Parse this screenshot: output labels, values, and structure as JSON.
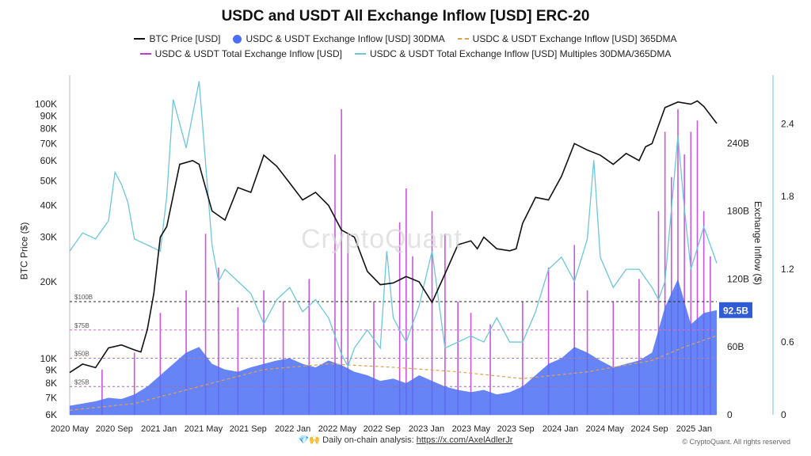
{
  "chart_data": {
    "type": "line",
    "title": "USDC and USDT All Exchange Inflow [USD] ERC-20",
    "legend": [
      {
        "label": "BTC Price [USD]",
        "style": "line",
        "color": "#111111"
      },
      {
        "label": "USDC & USDT Exchange Inflow [USD] 30DMA",
        "style": "area",
        "color": "#4c6ef5"
      },
      {
        "label": "USDC & USDT Exchange Inflow [USD] 365DMA",
        "style": "dashed",
        "color": "#e0a050"
      },
      {
        "label": "USDC & USDT Total Exchange Inflow [USD]",
        "style": "bar",
        "color": "#c03ad8"
      },
      {
        "label": "USDC & USDT Total Exchange Inflow [USD] Multiples 30DMA/365DMA",
        "style": "line",
        "color": "#6cc6dc"
      }
    ],
    "x_ticks": [
      "2020 May",
      "2020 Sep",
      "2021 Jan",
      "2021 May",
      "2021 Sep",
      "2022 Jan",
      "2022 May",
      "2022 Sep",
      "2023 Jan",
      "2023 May",
      "2023 Sep",
      "2024 Jan",
      "2024 May",
      "2024 Sep",
      "2025 Jan"
    ],
    "left_axis": {
      "label": "BTC Price ($)",
      "scale": "log",
      "range": [
        6000,
        130000
      ],
      "ticks": [
        "6K",
        "7K",
        "8K",
        "9K",
        "10K",
        "20K",
        "30K",
        "40K",
        "50K",
        "60K",
        "70K",
        "80K",
        "90K",
        "100K"
      ],
      "tick_values": [
        6000,
        7000,
        8000,
        9000,
        10000,
        20000,
        30000,
        40000,
        50000,
        60000,
        70000,
        80000,
        90000,
        100000
      ]
    },
    "right_axis": {
      "label": "Exchange Inflow ($)",
      "range": [
        0,
        300
      ],
      "unit": "B",
      "ticks": [
        "0",
        "60B",
        "120B",
        "180B",
        "240B"
      ],
      "tick_values": [
        0,
        60,
        120,
        180,
        240
      ]
    },
    "multiple_axis": {
      "range": [
        0,
        2.8
      ],
      "ticks": [
        "0",
        "0.6",
        "1.2",
        "1.8",
        "2.4"
      ],
      "tick_values": [
        0,
        0.6,
        1.2,
        1.8,
        2.4
      ]
    },
    "reference_lines": [
      {
        "label": "$100B",
        "value": 100,
        "style": "dashed",
        "color": "#222222"
      },
      {
        "label": "$75B",
        "value": 75,
        "style": "dashed",
        "color": "#d070c0"
      },
      {
        "label": "$50B",
        "value": 50,
        "style": "dashed",
        "color": "#a080c0"
      },
      {
        "label": "$25B",
        "value": 25,
        "style": "dashed",
        "color": "#9070b0"
      }
    ],
    "current_value_badge": {
      "label": "92.5B",
      "value": 92.5
    },
    "series": [
      {
        "name": "BTC Price [USD]",
        "axis": "left",
        "x": [
          0,
          2,
          4,
          6,
          8,
          10,
          11,
          12,
          13,
          14,
          15,
          17,
          19,
          20,
          22,
          24,
          26,
          28,
          30,
          32,
          34,
          36,
          38,
          40,
          42,
          44,
          46,
          48,
          50,
          52,
          54,
          56,
          58,
          60,
          62,
          63,
          64,
          66,
          68,
          69,
          70,
          72,
          74,
          76,
          78,
          80,
          82,
          84,
          86,
          88,
          89,
          90,
          92,
          94,
          96,
          97,
          98,
          100
        ],
        "values": [
          8800,
          9500,
          9200,
          11000,
          11300,
          10800,
          10600,
          13000,
          18000,
          30000,
          33000,
          58000,
          60000,
          58000,
          38000,
          35000,
          47000,
          45000,
          63000,
          57000,
          49000,
          42000,
          45000,
          40000,
          32000,
          30000,
          22000,
          19500,
          19800,
          21000,
          20000,
          16600,
          21500,
          28000,
          29000,
          27000,
          30000,
          27000,
          26500,
          27000,
          34000,
          43000,
          42000,
          52000,
          70000,
          66000,
          63000,
          58000,
          64000,
          60000,
          68000,
          70000,
          97000,
          102000,
          100000,
          103000,
          98000,
          84000
        ]
      },
      {
        "name": "USDC & USDT Exchange Inflow [USD] Multiples 30DMA/365DMA",
        "axis": "multiple",
        "x": [
          0,
          2,
          4,
          6,
          7,
          8,
          9,
          10,
          12,
          14,
          15,
          16,
          18,
          20,
          22,
          23,
          24,
          26,
          28,
          30,
          32,
          34,
          36,
          38,
          40,
          42,
          43,
          44,
          46,
          48,
          49,
          50,
          52,
          54,
          56,
          58,
          60,
          62,
          64,
          66,
          68,
          70,
          72,
          74,
          76,
          78,
          80,
          81,
          82,
          84,
          86,
          88,
          90,
          91,
          92,
          94,
          95,
          96,
          98,
          100
        ],
        "values": [
          1.35,
          1.5,
          1.45,
          1.6,
          2.0,
          1.9,
          1.75,
          1.45,
          1.4,
          1.35,
          1.8,
          2.6,
          2.2,
          2.75,
          1.4,
          1.1,
          1.2,
          1.1,
          1.0,
          0.75,
          0.95,
          1.05,
          0.85,
          0.95,
          0.8,
          0.5,
          0.4,
          0.55,
          0.7,
          0.55,
          1.35,
          0.8,
          0.6,
          0.9,
          1.35,
          0.55,
          0.6,
          0.65,
          0.6,
          0.8,
          0.6,
          0.6,
          0.85,
          1.2,
          1.3,
          1.1,
          1.45,
          2.1,
          1.3,
          1.05,
          1.2,
          1.2,
          1.05,
          0.95,
          1.1,
          2.3,
          1.7,
          1.2,
          1.55,
          1.25
        ]
      },
      {
        "name": "USDC & USDT Exchange Inflow [USD] 30DMA",
        "axis": "right",
        "x": [
          0,
          2,
          4,
          6,
          8,
          10,
          12,
          14,
          16,
          18,
          20,
          22,
          24,
          26,
          28,
          30,
          32,
          34,
          36,
          38,
          40,
          42,
          44,
          46,
          48,
          50,
          52,
          54,
          56,
          58,
          60,
          62,
          64,
          66,
          68,
          70,
          72,
          74,
          76,
          78,
          80,
          82,
          84,
          86,
          88,
          90,
          92,
          94,
          95,
          96,
          98,
          100
        ],
        "values": [
          8,
          10,
          12,
          15,
          14,
          18,
          25,
          35,
          45,
          55,
          60,
          45,
          40,
          38,
          42,
          45,
          48,
          50,
          45,
          42,
          48,
          44,
          38,
          35,
          30,
          32,
          28,
          35,
          30,
          25,
          22,
          20,
          22,
          18,
          20,
          25,
          35,
          45,
          50,
          60,
          55,
          48,
          42,
          45,
          48,
          55,
          95,
          120,
          100,
          80,
          90,
          92.5
        ]
      },
      {
        "name": "USDC & USDT Exchange Inflow [USD] 365DMA",
        "axis": "right",
        "x": [
          0,
          10,
          20,
          30,
          40,
          50,
          60,
          70,
          80,
          90,
          95,
          100
        ],
        "values": [
          4,
          10,
          25,
          40,
          45,
          42,
          38,
          32,
          38,
          48,
          60,
          70
        ]
      },
      {
        "name": "USDC & USDT Total Exchange Inflow [USD]",
        "axis": "right",
        "x": [
          5,
          10,
          14,
          18,
          21,
          23,
          26,
          30,
          33,
          37,
          41,
          42,
          43,
          47,
          51,
          52,
          53,
          56,
          58,
          60,
          62,
          65,
          70,
          74,
          78,
          80,
          84,
          88,
          91,
          92,
          93,
          94,
          95,
          96,
          97,
          98,
          99
        ],
        "values": [
          40,
          55,
          90,
          110,
          160,
          130,
          95,
          110,
          100,
          120,
          230,
          270,
          160,
          100,
          170,
          200,
          140,
          180,
          160,
          100,
          90,
          80,
          100,
          130,
          150,
          110,
          100,
          120,
          180,
          250,
          210,
          270,
          230,
          250,
          260,
          180,
          140
        ]
      }
    ]
  },
  "footer": {
    "emoji": "💎🙌",
    "text": "Daily on-chain analysis:",
    "link": "https://x.com/AxelAdlerJr"
  },
  "copyright": "© CryptoQuant. All rights reserved",
  "watermark": "CryptoQuant"
}
